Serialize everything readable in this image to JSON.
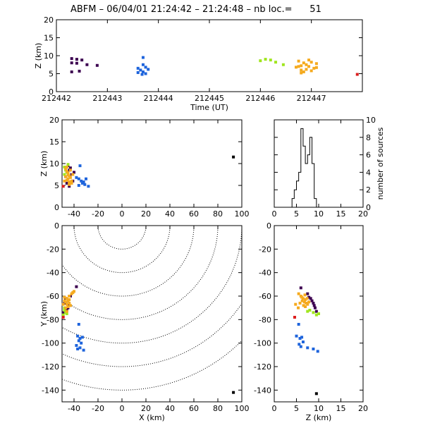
{
  "title": {
    "prefix": "ABFM",
    "date": "06/04/01",
    "time_start": "21:24:42",
    "time_end": "21:24:48",
    "count_label": "nb loc.=",
    "count_value": "51",
    "text": "ABFM – 06/04/01 21:24:42 – 21:24:48 – nb loc.=      51"
  },
  "colors": {
    "purple": "#3c0050",
    "blue": "#1e64dc",
    "lime": "#a0e61e",
    "orange": "#f5aa1e",
    "red": "#dc1e1e",
    "axes": "#000000"
  },
  "chart_data": [
    {
      "id": "time_z",
      "type": "scatter",
      "xlabel": "Time (UT)",
      "ylabel": "Z (km)",
      "xlim": [
        212442,
        212448
      ],
      "ylim": [
        0,
        20
      ],
      "xticks": [
        212442,
        212443,
        212444,
        212445,
        212446,
        212447
      ],
      "yticks": [
        0,
        5,
        10,
        15,
        20
      ],
      "points": [
        {
          "x": 212442.3,
          "y": 9.2,
          "c": "purple"
        },
        {
          "x": 212442.4,
          "y": 9.0,
          "c": "purple"
        },
        {
          "x": 212442.5,
          "y": 8.8,
          "c": "purple"
        },
        {
          "x": 212442.3,
          "y": 8.0,
          "c": "purple"
        },
        {
          "x": 212442.4,
          "y": 7.9,
          "c": "purple"
        },
        {
          "x": 212442.6,
          "y": 7.5,
          "c": "purple"
        },
        {
          "x": 212442.8,
          "y": 7.3,
          "c": "purple"
        },
        {
          "x": 212442.3,
          "y": 5.5,
          "c": "purple"
        },
        {
          "x": 212442.45,
          "y": 5.7,
          "c": "purple"
        },
        {
          "x": 212443.7,
          "y": 9.5,
          "c": "blue"
        },
        {
          "x": 212443.7,
          "y": 7.5,
          "c": "blue"
        },
        {
          "x": 212443.75,
          "y": 6.8,
          "c": "blue"
        },
        {
          "x": 212443.6,
          "y": 6.5,
          "c": "blue"
        },
        {
          "x": 212443.65,
          "y": 6.0,
          "c": "blue"
        },
        {
          "x": 212443.8,
          "y": 6.2,
          "c": "blue"
        },
        {
          "x": 212443.7,
          "y": 5.5,
          "c": "blue"
        },
        {
          "x": 212443.6,
          "y": 5.3,
          "c": "blue"
        },
        {
          "x": 212443.75,
          "y": 5.0,
          "c": "blue"
        },
        {
          "x": 212443.68,
          "y": 4.8,
          "c": "blue"
        },
        {
          "x": 212446.0,
          "y": 8.6,
          "c": "lime"
        },
        {
          "x": 212446.1,
          "y": 9.0,
          "c": "lime"
        },
        {
          "x": 212446.2,
          "y": 8.8,
          "c": "lime"
        },
        {
          "x": 212446.3,
          "y": 8.2,
          "c": "lime"
        },
        {
          "x": 212446.45,
          "y": 7.5,
          "c": "lime"
        },
        {
          "x": 212446.75,
          "y": 8.5,
          "c": "orange"
        },
        {
          "x": 212446.85,
          "y": 8.0,
          "c": "orange"
        },
        {
          "x": 212446.9,
          "y": 7.5,
          "c": "orange"
        },
        {
          "x": 212446.8,
          "y": 7.2,
          "c": "orange"
        },
        {
          "x": 212446.95,
          "y": 7.0,
          "c": "orange"
        },
        {
          "x": 212446.7,
          "y": 6.8,
          "c": "orange"
        },
        {
          "x": 212447.05,
          "y": 6.5,
          "c": "orange"
        },
        {
          "x": 212446.9,
          "y": 6.2,
          "c": "orange"
        },
        {
          "x": 212446.8,
          "y": 6.0,
          "c": "orange"
        },
        {
          "x": 212447.1,
          "y": 7.8,
          "c": "orange"
        },
        {
          "x": 212447.0,
          "y": 8.2,
          "c": "orange"
        },
        {
          "x": 212446.75,
          "y": 7.0,
          "c": "orange"
        },
        {
          "x": 212446.85,
          "y": 5.5,
          "c": "orange"
        },
        {
          "x": 212447.0,
          "y": 5.8,
          "c": "orange"
        },
        {
          "x": 212446.95,
          "y": 8.8,
          "c": "orange"
        },
        {
          "x": 212447.1,
          "y": 6.7,
          "c": "orange"
        },
        {
          "x": 212446.8,
          "y": 5.2,
          "c": "orange"
        },
        {
          "x": 212447.9,
          "y": 4.8,
          "c": "red"
        }
      ]
    },
    {
      "id": "x_z",
      "type": "scatter",
      "xlabel": "",
      "ylabel": "Z (km)",
      "xlim": [
        -50,
        100
      ],
      "ylim": [
        0,
        20
      ],
      "xticks": [
        -40,
        -20,
        0,
        20,
        40,
        60,
        80,
        100
      ],
      "yticks": [
        0,
        5,
        10,
        15,
        20
      ],
      "points": [
        {
          "x": -45,
          "y": 9.5,
          "c": "purple"
        },
        {
          "x": -44,
          "y": 8.5,
          "c": "purple"
        },
        {
          "x": -42,
          "y": 7.5,
          "c": "purple"
        },
        {
          "x": -46,
          "y": 5.5,
          "c": "purple"
        },
        {
          "x": -43,
          "y": 9.0,
          "c": "purple"
        },
        {
          "x": -40,
          "y": 8.0,
          "c": "purple"
        },
        {
          "x": -47,
          "y": 7.0,
          "c": "purple"
        },
        {
          "x": -41,
          "y": 6.0,
          "c": "purple"
        },
        {
          "x": -44,
          "y": 4.8,
          "c": "purple"
        },
        {
          "x": -35,
          "y": 9.5,
          "c": "blue"
        },
        {
          "x": -36,
          "y": 6.5,
          "c": "blue"
        },
        {
          "x": -34,
          "y": 6.0,
          "c": "blue"
        },
        {
          "x": -32,
          "y": 5.8,
          "c": "blue"
        },
        {
          "x": -33,
          "y": 5.5,
          "c": "blue"
        },
        {
          "x": -30,
          "y": 6.5,
          "c": "blue"
        },
        {
          "x": -31,
          "y": 5.2,
          "c": "blue"
        },
        {
          "x": -36,
          "y": 5.0,
          "c": "blue"
        },
        {
          "x": -28,
          "y": 4.8,
          "c": "blue"
        },
        {
          "x": -38,
          "y": 6.8,
          "c": "blue"
        },
        {
          "x": -48,
          "y": 9.2,
          "c": "lime"
        },
        {
          "x": -47,
          "y": 8.5,
          "c": "lime"
        },
        {
          "x": -46,
          "y": 8.0,
          "c": "lime"
        },
        {
          "x": -48,
          "y": 7.5,
          "c": "lime"
        },
        {
          "x": -45,
          "y": 9.8,
          "c": "lime"
        },
        {
          "x": -47,
          "y": 8.8,
          "c": "orange"
        },
        {
          "x": -46,
          "y": 8.2,
          "c": "orange"
        },
        {
          "x": -45,
          "y": 7.8,
          "c": "orange"
        },
        {
          "x": -44,
          "y": 7.2,
          "c": "orange"
        },
        {
          "x": -47,
          "y": 7.0,
          "c": "orange"
        },
        {
          "x": -43,
          "y": 6.8,
          "c": "orange"
        },
        {
          "x": -45,
          "y": 6.5,
          "c": "orange"
        },
        {
          "x": -46,
          "y": 6.2,
          "c": "orange"
        },
        {
          "x": -42,
          "y": 6.0,
          "c": "orange"
        },
        {
          "x": -44,
          "y": 5.8,
          "c": "orange"
        },
        {
          "x": -48,
          "y": 6.0,
          "c": "orange"
        },
        {
          "x": -43,
          "y": 8.5,
          "c": "orange"
        },
        {
          "x": -41,
          "y": 7.5,
          "c": "orange"
        },
        {
          "x": -44,
          "y": 5.2,
          "c": "orange"
        },
        {
          "x": -46,
          "y": 9.2,
          "c": "orange"
        },
        {
          "x": -42,
          "y": 5.5,
          "c": "orange"
        },
        {
          "x": -45,
          "y": 7.4,
          "c": "orange"
        },
        {
          "x": -49,
          "y": 4.8,
          "c": "red"
        },
        {
          "x": 93,
          "y": 11.5,
          "c": "axes"
        }
      ]
    },
    {
      "id": "histogram_z",
      "type": "bar",
      "xlabel": "",
      "ylabel": "number of sources",
      "xlim": [
        0,
        20
      ],
      "ylim": [
        0,
        10
      ],
      "xticks": [
        0,
        5,
        10,
        15,
        20
      ],
      "yticks": [
        0,
        2,
        4,
        6,
        8,
        10
      ],
      "bin_width": 0.5,
      "bin_start": 4.0,
      "values": [
        1,
        2,
        3,
        4,
        9,
        7,
        5,
        6,
        8,
        5,
        1,
        0
      ]
    },
    {
      "id": "x_y",
      "type": "scatter",
      "xlabel": "X (km)",
      "ylabel": "Y (km)",
      "xlim": [
        -50,
        100
      ],
      "ylim": [
        -150,
        0
      ],
      "xticks": [
        -40,
        -20,
        0,
        20,
        40,
        60,
        80,
        100
      ],
      "yticks": [
        -140,
        -120,
        -100,
        -80,
        -60,
        -40,
        -20,
        0
      ],
      "range_rings_km": [
        20,
        40,
        60,
        80,
        100,
        120,
        140
      ],
      "ring_center": [
        0,
        0
      ],
      "points": [
        {
          "x": -38,
          "y": -52,
          "c": "purple"
        },
        {
          "x": -45,
          "y": -64,
          "c": "purple"
        },
        {
          "x": -44,
          "y": -68,
          "c": "purple"
        },
        {
          "x": -46,
          "y": -72,
          "c": "purple"
        },
        {
          "x": -47,
          "y": -62,
          "c": "purple"
        },
        {
          "x": -43,
          "y": -60,
          "c": "purple"
        },
        {
          "x": -48,
          "y": -66,
          "c": "purple"
        },
        {
          "x": -45,
          "y": -70,
          "c": "purple"
        },
        {
          "x": -49,
          "y": -74,
          "c": "purple"
        },
        {
          "x": -36,
          "y": -84,
          "c": "blue"
        },
        {
          "x": -37,
          "y": -94,
          "c": "blue"
        },
        {
          "x": -35,
          "y": -96,
          "c": "blue"
        },
        {
          "x": -33,
          "y": -95,
          "c": "blue"
        },
        {
          "x": -36,
          "y": -98,
          "c": "blue"
        },
        {
          "x": -34,
          "y": -100,
          "c": "blue"
        },
        {
          "x": -38,
          "y": -102,
          "c": "blue"
        },
        {
          "x": -35,
          "y": -104,
          "c": "blue"
        },
        {
          "x": -32,
          "y": -106,
          "c": "blue"
        },
        {
          "x": -37,
          "y": -105,
          "c": "blue"
        },
        {
          "x": -48,
          "y": -72,
          "c": "lime"
        },
        {
          "x": -47,
          "y": -74,
          "c": "lime"
        },
        {
          "x": -49,
          "y": -76,
          "c": "lime"
        },
        {
          "x": -48,
          "y": -70,
          "c": "lime"
        },
        {
          "x": -46,
          "y": -75,
          "c": "lime"
        },
        {
          "x": -40,
          "y": -56,
          "c": "orange"
        },
        {
          "x": -42,
          "y": -58,
          "c": "orange"
        },
        {
          "x": -44,
          "y": -60,
          "c": "orange"
        },
        {
          "x": -46,
          "y": -62,
          "c": "orange"
        },
        {
          "x": -45,
          "y": -64,
          "c": "orange"
        },
        {
          "x": -47,
          "y": -65,
          "c": "orange"
        },
        {
          "x": -44,
          "y": -66,
          "c": "orange"
        },
        {
          "x": -46,
          "y": -67,
          "c": "orange"
        },
        {
          "x": -48,
          "y": -64,
          "c": "orange"
        },
        {
          "x": -43,
          "y": -68,
          "c": "orange"
        },
        {
          "x": -45,
          "y": -69,
          "c": "orange"
        },
        {
          "x": -47,
          "y": -70,
          "c": "orange"
        },
        {
          "x": -49,
          "y": -67,
          "c": "orange"
        },
        {
          "x": -44,
          "y": -63,
          "c": "orange"
        },
        {
          "x": -41,
          "y": -57,
          "c": "orange"
        },
        {
          "x": -46,
          "y": -73,
          "c": "orange"
        },
        {
          "x": -48,
          "y": -61,
          "c": "orange"
        },
        {
          "x": -49,
          "y": -78,
          "c": "red"
        },
        {
          "x": 93,
          "y": -142,
          "c": "axes"
        }
      ]
    },
    {
      "id": "z_y",
      "type": "scatter",
      "xlabel": "Z (km)",
      "ylabel": "",
      "xlim": [
        0,
        20
      ],
      "ylim": [
        -150,
        0
      ],
      "xticks": [
        0,
        5,
        10,
        15,
        20
      ],
      "yticks": [
        -140,
        -120,
        -100,
        -80,
        -60,
        -40,
        -20,
        0
      ],
      "points": [
        {
          "x": 6.0,
          "y": -53,
          "c": "purple"
        },
        {
          "x": 7.5,
          "y": -58,
          "c": "purple"
        },
        {
          "x": 8.2,
          "y": -62,
          "c": "purple"
        },
        {
          "x": 8.8,
          "y": -66,
          "c": "purple"
        },
        {
          "x": 9.2,
          "y": -70,
          "c": "purple"
        },
        {
          "x": 9.5,
          "y": -73,
          "c": "purple"
        },
        {
          "x": 8.5,
          "y": -64,
          "c": "purple"
        },
        {
          "x": 7.8,
          "y": -61,
          "c": "purple"
        },
        {
          "x": 9.0,
          "y": -68,
          "c": "purple"
        },
        {
          "x": 5.5,
          "y": -84,
          "c": "blue"
        },
        {
          "x": 5.0,
          "y": -94,
          "c": "blue"
        },
        {
          "x": 5.8,
          "y": -96,
          "c": "blue"
        },
        {
          "x": 6.2,
          "y": -95,
          "c": "blue"
        },
        {
          "x": 6.5,
          "y": -99,
          "c": "blue"
        },
        {
          "x": 5.6,
          "y": -101,
          "c": "blue"
        },
        {
          "x": 6.0,
          "y": -103,
          "c": "blue"
        },
        {
          "x": 7.5,
          "y": -104,
          "c": "blue"
        },
        {
          "x": 8.8,
          "y": -105,
          "c": "blue"
        },
        {
          "x": 9.8,
          "y": -107,
          "c": "blue"
        },
        {
          "x": 8.0,
          "y": -72,
          "c": "lime"
        },
        {
          "x": 8.8,
          "y": -74,
          "c": "lime"
        },
        {
          "x": 9.5,
          "y": -76,
          "c": "lime"
        },
        {
          "x": 10.0,
          "y": -75,
          "c": "lime"
        },
        {
          "x": 7.5,
          "y": -73,
          "c": "lime"
        },
        {
          "x": 5.5,
          "y": -58,
          "c": "orange"
        },
        {
          "x": 6.0,
          "y": -60,
          "c": "orange"
        },
        {
          "x": 6.5,
          "y": -62,
          "c": "orange"
        },
        {
          "x": 7.0,
          "y": -63,
          "c": "orange"
        },
        {
          "x": 6.8,
          "y": -65,
          "c": "orange"
        },
        {
          "x": 7.2,
          "y": -66,
          "c": "orange"
        },
        {
          "x": 6.3,
          "y": -64,
          "c": "orange"
        },
        {
          "x": 7.5,
          "y": -67,
          "c": "orange"
        },
        {
          "x": 6.6,
          "y": -68,
          "c": "orange"
        },
        {
          "x": 7.8,
          "y": -65,
          "c": "orange"
        },
        {
          "x": 5.8,
          "y": -66,
          "c": "orange"
        },
        {
          "x": 7.0,
          "y": -69,
          "c": "orange"
        },
        {
          "x": 4.8,
          "y": -67,
          "c": "orange"
        },
        {
          "x": 6.2,
          "y": -61,
          "c": "orange"
        },
        {
          "x": 7.4,
          "y": -62,
          "c": "orange"
        },
        {
          "x": 5.4,
          "y": -70,
          "c": "orange"
        },
        {
          "x": 6.9,
          "y": -59,
          "c": "orange"
        },
        {
          "x": 4.6,
          "y": -78,
          "c": "red"
        },
        {
          "x": 9.5,
          "y": -143,
          "c": "axes"
        }
      ]
    }
  ]
}
